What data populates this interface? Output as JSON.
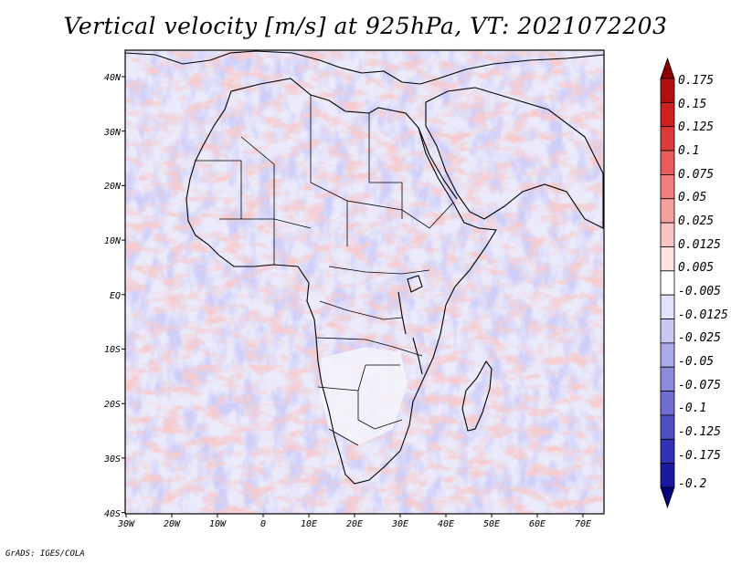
{
  "title": "Vertical velocity [m/s] at 925hPa, VT: 2021072203",
  "credit": "GrADS: IGES/COLA",
  "lat_labels": [
    "40N",
    "30N",
    "20N",
    "10N",
    "EQ",
    "10S",
    "20S",
    "30S",
    "40S"
  ],
  "lon_labels": [
    "30W",
    "20W",
    "10W",
    "0",
    "10E",
    "20E",
    "30E",
    "40E",
    "50E",
    "60E",
    "70E"
  ],
  "colorbar": {
    "labels": [
      "0.175",
      "0.15",
      "0.125",
      "0.1",
      "0.075",
      "0.05",
      "0.025",
      "0.0125",
      "0.005",
      "-0.005",
      "-0.0125",
      "-0.025",
      "-0.05",
      "-0.075",
      "-0.1",
      "-0.125",
      "-0.175",
      "-0.2"
    ],
    "colors": [
      "#8c0000",
      "#b01010",
      "#cc2222",
      "#dd3a3a",
      "#e85c5c",
      "#f07e7e",
      "#f6a0a0",
      "#fac4c4",
      "#fde2e2",
      "#ffffff",
      "#e2e2fb",
      "#c8c8f3",
      "#aaaaea",
      "#8c8cde",
      "#6e6ed2",
      "#5050c4",
      "#3232b4",
      "#1818a0",
      "#000078"
    ]
  },
  "colors": {
    "ocean_red": "#f2b4b4",
    "ocean_blue": "#c8c8f2",
    "coastline": "#000000",
    "frame": "#000000"
  }
}
